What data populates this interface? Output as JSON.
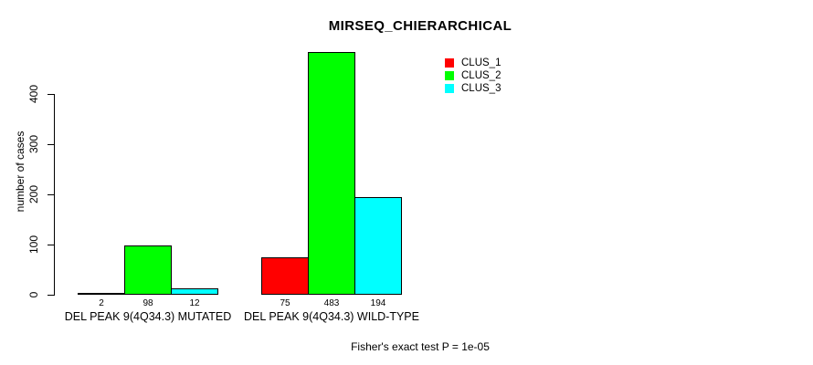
{
  "chart_data": {
    "type": "bar",
    "title": "MIRSEQ_CHIERARCHICAL",
    "xlabel": "",
    "ylabel": "number of cases",
    "categories": [
      "DEL PEAK 9(4Q34.3) MUTATED",
      "DEL PEAK 9(4Q34.3) WILD-TYPE"
    ],
    "series": [
      {
        "name": "CLUS_1",
        "color": "#ff0000",
        "values": [
          2,
          75
        ]
      },
      {
        "name": "CLUS_2",
        "color": "#00ff00",
        "values": [
          98,
          483
        ]
      },
      {
        "name": "CLUS_3",
        "color": "#00ffff",
        "values": [
          12,
          194
        ]
      }
    ],
    "bar_value_labels": [
      [
        2,
        98,
        12
      ],
      [
        75,
        483,
        194
      ]
    ],
    "y_ticks": [
      0,
      100,
      200,
      300,
      400
    ],
    "ylim": [
      0,
      490
    ],
    "grid": false,
    "legend_position": "top-right",
    "legend_entries": [
      "CLUS_1",
      "CLUS_2",
      "CLUS_3"
    ],
    "footnote": "Fisher's exact test P = 1e-05"
  },
  "colors": {
    "background": "#ffffff",
    "axis": "#000000",
    "text": "#000000",
    "clus_1": "#ff0000",
    "clus_2": "#00ff00",
    "clus_3": "#00ffff"
  }
}
